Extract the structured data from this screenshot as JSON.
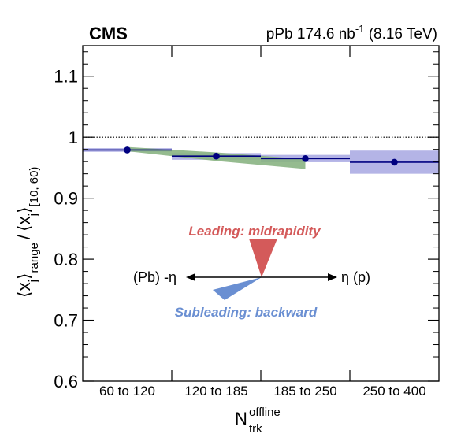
{
  "chart_data": {
    "type": "line",
    "experiment": "CMS",
    "dataset_label": "pPb 174.6 nb",
    "dataset_sup": "-1",
    "energy_label": "(8.16 TeV)",
    "xlabel_main": "N",
    "xlabel_sup": "offline",
    "xlabel_sub": "trk",
    "ylabel": {
      "open1": "⟨x",
      "close1": "⟩",
      "sub1_j": "j",
      "sub1_range": "range",
      "slash": "/",
      "open2": "⟨x",
      "close2": "⟩",
      "sub2_j": "j",
      "sub2_range": "[10, 60)"
    },
    "categories": [
      "60 to 120",
      "120 to 185",
      "185 to 250",
      "250 to 400"
    ],
    "ylim": [
      0.6,
      1.15
    ],
    "yticks": [
      0.6,
      0.7,
      0.8,
      0.9,
      1.0,
      1.1
    ],
    "ytick_labels": [
      "0.6",
      "0.7",
      "0.8",
      "0.9",
      "1",
      "1.1"
    ],
    "reference_line": 1.0,
    "series": [
      {
        "values": [
          0.979,
          0.969,
          0.965,
          0.959
        ],
        "syst_band": [
          [
            0.976,
            0.982
          ],
          [
            0.963,
            0.974
          ],
          [
            0.959,
            0.971
          ],
          [
            0.94,
            0.978
          ]
        ],
        "color": "#000080",
        "band_color": "#b4b4e6"
      }
    ],
    "green_band": {
      "color": "#8ab483",
      "upper": [
        0.984,
        0.975,
        0.964
      ],
      "lower": [
        0.977,
        0.961,
        0.948
      ]
    },
    "annotations": {
      "leading": "Leading: midrapidity",
      "subleading": "Subleading: backward",
      "left": "(Pb) -η",
      "right": "η (p)",
      "leading_color": "#d45a5a",
      "subleading_color": "#6a8fd2"
    },
    "grid": false
  }
}
